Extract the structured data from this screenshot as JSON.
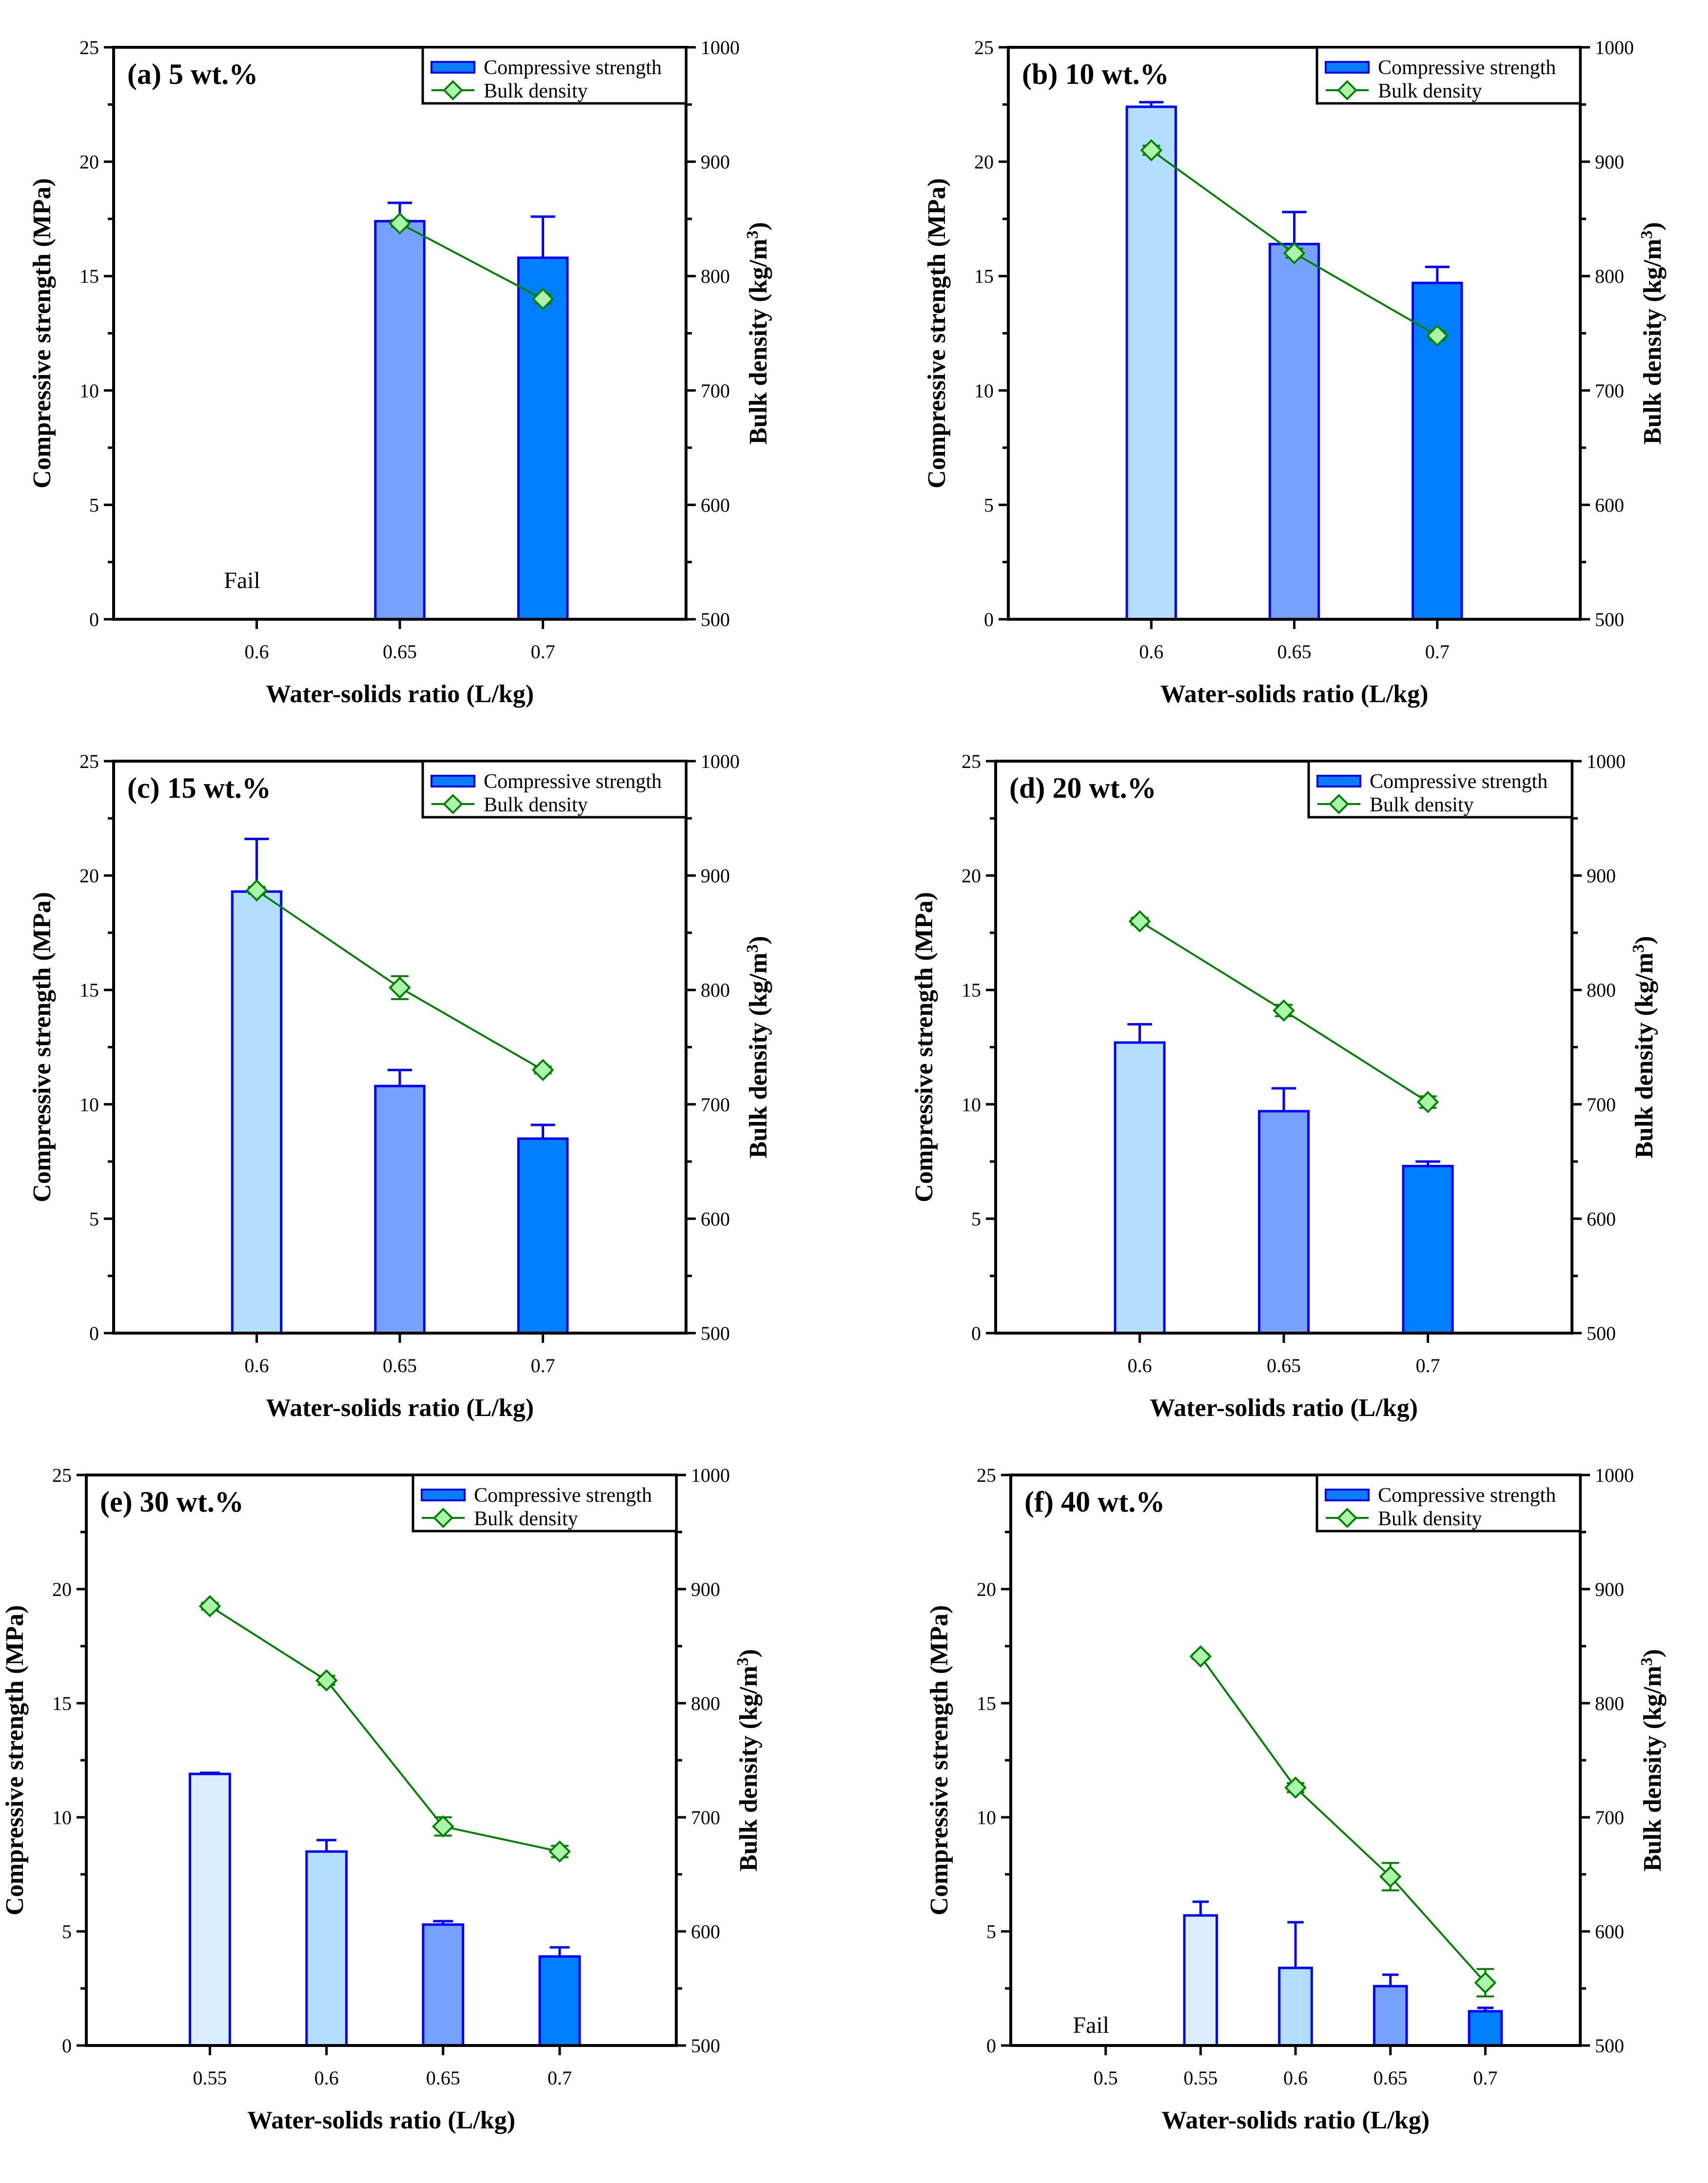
{
  "colors": {
    "bar_stroke": "#0000ff",
    "line": "#008000",
    "marker_fill": "#aaf5aa",
    "ws_0.5": "#daeefe",
    "ws_0.55": "#daeefe",
    "ws_0.6": "#b3deff",
    "ws_0.65": "#76a1ff",
    "ws_0.7": "#0080ff",
    "legend_bar": "#0a7cff"
  },
  "chart_data": [
    {
      "type": "bar",
      "title": "(a) 5 wt.%",
      "xlabel": "Water-solids ratio (L/kg)",
      "ylabel": "Compressive strength (MPa)",
      "y2label": "Bulk density (kg/m",
      "y2label_sup": "3",
      "y2label_end": ")",
      "xlim": [
        0.55,
        0.75
      ],
      "ylim": [
        0,
        25
      ],
      "y2lim": [
        500,
        1000
      ],
      "yticks": [
        0,
        5,
        10,
        15,
        20,
        25
      ],
      "y2ticks": [
        500,
        600,
        700,
        800,
        900,
        1000
      ],
      "categories": [
        "0.6",
        "0.65",
        "0.7"
      ],
      "x": [
        0.6,
        0.65,
        0.7
      ],
      "series": [
        {
          "name": "Compressive strength",
          "kind": "bar",
          "values": [
            null,
            17.4,
            15.8
          ],
          "errors": [
            null,
            0.8,
            1.8
          ]
        },
        {
          "name": "Bulk density",
          "kind": "line",
          "axis": "right",
          "values": [
            null,
            846,
            780
          ],
          "errors": [
            null,
            3,
            4
          ]
        }
      ],
      "annotations": [
        {
          "text": "Fail",
          "x": 0.6,
          "y": 1.7
        }
      ],
      "legend": "top-right"
    },
    {
      "type": "bar",
      "title": "(b) 10 wt.%",
      "xlabel": "Water-solids ratio (L/kg)",
      "ylabel": "Compressive strength (MPa)",
      "y2label": "Bulk density (kg/m",
      "y2label_sup": "3",
      "y2label_end": ")",
      "xlim": [
        0.55,
        0.75
      ],
      "ylim": [
        0,
        25
      ],
      "y2lim": [
        500,
        1000
      ],
      "yticks": [
        0,
        5,
        10,
        15,
        20,
        25
      ],
      "y2ticks": [
        500,
        600,
        700,
        800,
        900,
        1000
      ],
      "categories": [
        "0.6",
        "0.65",
        "0.7"
      ],
      "x": [
        0.6,
        0.65,
        0.7
      ],
      "series": [
        {
          "name": "Compressive strength",
          "kind": "bar",
          "values": [
            22.4,
            16.4,
            14.7
          ],
          "errors": [
            0.2,
            1.4,
            0.7
          ]
        },
        {
          "name": "Bulk density",
          "kind": "line",
          "axis": "right",
          "values": [
            910,
            820,
            748
          ],
          "errors": [
            4,
            4,
            4
          ]
        }
      ],
      "annotations": [],
      "legend": "top-right"
    },
    {
      "type": "bar",
      "title": "(c) 15 wt.%",
      "xlabel": "Water-solids ratio (L/kg)",
      "ylabel": "Compressive strength (MPa)",
      "y2label": "Bulk density (kg/m",
      "y2label_sup": "3",
      "y2label_end": ")",
      "xlim": [
        0.55,
        0.75
      ],
      "ylim": [
        0,
        25
      ],
      "y2lim": [
        500,
        1000
      ],
      "yticks": [
        0,
        5,
        10,
        15,
        20,
        25
      ],
      "y2ticks": [
        500,
        600,
        700,
        800,
        900,
        1000
      ],
      "categories": [
        "0.6",
        "0.65",
        "0.7"
      ],
      "x": [
        0.6,
        0.65,
        0.7
      ],
      "series": [
        {
          "name": "Compressive strength",
          "kind": "bar",
          "values": [
            19.3,
            10.8,
            8.5
          ],
          "errors": [
            2.3,
            0.7,
            0.6
          ]
        },
        {
          "name": "Bulk density",
          "kind": "line",
          "axis": "right",
          "values": [
            887,
            802,
            730
          ],
          "errors": [
            3,
            10,
            3
          ]
        }
      ],
      "annotations": [],
      "legend": "top-right"
    },
    {
      "type": "bar",
      "title": "(d) 20 wt.%",
      "xlabel": "Water-solids ratio (L/kg)",
      "ylabel": "Compressive strength (MPa)",
      "y2label": "Bulk density (kg/m",
      "y2label_sup": "3",
      "y2label_end": ")",
      "xlim": [
        0.55,
        0.75
      ],
      "ylim": [
        0,
        25
      ],
      "y2lim": [
        500,
        1000
      ],
      "yticks": [
        0,
        5,
        10,
        15,
        20,
        25
      ],
      "y2ticks": [
        500,
        600,
        700,
        800,
        900,
        1000
      ],
      "categories": [
        "0.6",
        "0.65",
        "0.7"
      ],
      "x": [
        0.6,
        0.65,
        0.7
      ],
      "series": [
        {
          "name": "Compressive strength",
          "kind": "bar",
          "values": [
            12.7,
            9.7,
            7.3
          ],
          "errors": [
            0.8,
            1.0,
            0.2
          ]
        },
        {
          "name": "Bulk density",
          "kind": "line",
          "axis": "right",
          "values": [
            860,
            782,
            702
          ],
          "errors": [
            3,
            5,
            5
          ]
        }
      ],
      "annotations": [],
      "legend": "top-right"
    },
    {
      "type": "bar",
      "title": "(e) 30 wt.%",
      "xlabel": "Water-solids ratio (L/kg)",
      "ylabel": "Compressive strength (MPa)",
      "y2label": "Bulk density (kg/m",
      "y2label_sup": "3",
      "y2label_end": ")",
      "xlim": [
        0.497,
        0.75
      ],
      "ylim": [
        0,
        25
      ],
      "y2lim": [
        500,
        1000
      ],
      "yticks": [
        0,
        5,
        10,
        15,
        20,
        25
      ],
      "y2ticks": [
        500,
        600,
        700,
        800,
        900,
        1000
      ],
      "categories": [
        "0.55",
        "0.6",
        "0.65",
        "0.7"
      ],
      "x": [
        0.55,
        0.6,
        0.65,
        0.7
      ],
      "series": [
        {
          "name": "Compressive strength",
          "kind": "bar",
          "values": [
            11.9,
            8.5,
            5.3,
            3.9
          ],
          "errors": [
            0.05,
            0.5,
            0.15,
            0.4
          ]
        },
        {
          "name": "Bulk density",
          "kind": "line",
          "axis": "right",
          "values": [
            885,
            820,
            692,
            670
          ],
          "errors": [
            3,
            4,
            8,
            5
          ]
        }
      ],
      "annotations": [],
      "legend": "top-right"
    },
    {
      "type": "bar",
      "title": "(f) 40 wt.%",
      "xlabel": "Water-solids ratio (L/kg)",
      "ylabel": "Compressive strength (MPa)",
      "y2label": "Bulk density (kg/m",
      "y2label_sup": "3",
      "y2label_end": ")",
      "xlim": [
        0.45,
        0.75
      ],
      "ylim": [
        0,
        25
      ],
      "y2lim": [
        500,
        1000
      ],
      "yticks": [
        0,
        5,
        10,
        15,
        20,
        25
      ],
      "y2ticks": [
        500,
        600,
        700,
        800,
        900,
        1000
      ],
      "categories": [
        "0.5",
        "0.55",
        "0.6",
        "0.65",
        "0.7"
      ],
      "x": [
        0.5,
        0.55,
        0.6,
        0.65,
        0.7
      ],
      "series": [
        {
          "name": "Compressive strength",
          "kind": "bar",
          "values": [
            null,
            5.7,
            3.4,
            2.6,
            1.5
          ],
          "errors": [
            null,
            0.6,
            2.0,
            0.5,
            0.15
          ]
        },
        {
          "name": "Bulk density",
          "kind": "line",
          "axis": "right",
          "values": [
            null,
            841,
            726,
            648,
            555
          ],
          "errors": [
            null,
            2,
            4,
            12,
            12
          ]
        }
      ],
      "annotations": [
        {
          "text": "Fail",
          "x": 0.5,
          "y": 0.9
        }
      ],
      "legend": "top-right"
    }
  ]
}
